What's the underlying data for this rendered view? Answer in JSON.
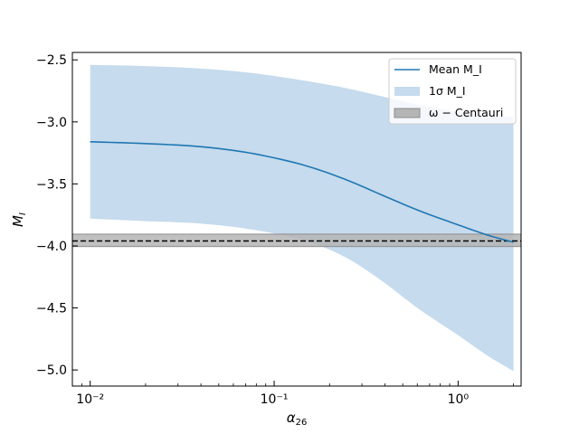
{
  "chart_data": {
    "type": "line",
    "xscale": "log",
    "xlim": [
      0.008,
      2.2
    ],
    "ylim": [
      -5.13,
      -2.44
    ],
    "xlabel": "α26",
    "ylabel": "M_I",
    "grid": false,
    "legend_position": "top-right",
    "xticks": [
      {
        "value": 0.01,
        "label": "10⁻²"
      },
      {
        "value": 0.1,
        "label": "10⁻¹"
      },
      {
        "value": 1,
        "label": "10⁰"
      }
    ],
    "yticks": [
      {
        "value": -2.5,
        "label": "−2.5"
      },
      {
        "value": -3.0,
        "label": "−3.0"
      },
      {
        "value": -3.5,
        "label": "−3.5"
      },
      {
        "value": -4.0,
        "label": "−4.0"
      },
      {
        "value": -4.5,
        "label": "−4.5"
      },
      {
        "value": -5.0,
        "label": "−5.0"
      }
    ],
    "series": [
      {
        "name": "Mean M_I",
        "kind": "line",
        "color": "#1f77b4",
        "x": [
          0.01,
          0.02,
          0.04,
          0.07,
          0.1,
          0.15,
          0.25,
          0.4,
          0.6,
          1.0,
          1.5,
          2.0
        ],
        "y": [
          -3.16,
          -3.175,
          -3.2,
          -3.245,
          -3.29,
          -3.355,
          -3.47,
          -3.6,
          -3.71,
          -3.83,
          -3.92,
          -3.97
        ]
      },
      {
        "name": "1σ M_I",
        "kind": "band",
        "color": "#c6dbed",
        "x": [
          0.01,
          0.02,
          0.04,
          0.07,
          0.1,
          0.15,
          0.25,
          0.4,
          0.6,
          1.0,
          1.5,
          2.0
        ],
        "upper": [
          -2.54,
          -2.55,
          -2.57,
          -2.6,
          -2.63,
          -2.67,
          -2.73,
          -2.8,
          -2.86,
          -2.92,
          -2.95,
          -2.96
        ],
        "lower": [
          -3.78,
          -3.8,
          -3.82,
          -3.86,
          -3.9,
          -3.96,
          -4.1,
          -4.3,
          -4.5,
          -4.72,
          -4.9,
          -5.01
        ]
      },
      {
        "name": "ω − Centauri",
        "kind": "hband",
        "color": "#b5b5b5",
        "center": -3.96,
        "ymin": -4.005,
        "ymax": -3.905
      }
    ],
    "legend": [
      {
        "key": "mean",
        "label": "Mean M_I",
        "swatch": "line",
        "color": "#1f77b4"
      },
      {
        "key": "sigma",
        "label": "1σ M_I",
        "swatch": "patch",
        "color": "#c6dbed"
      },
      {
        "key": "omega",
        "label": "ω − Centauri",
        "swatch": "patch",
        "color": "#b5b5b5"
      }
    ]
  }
}
